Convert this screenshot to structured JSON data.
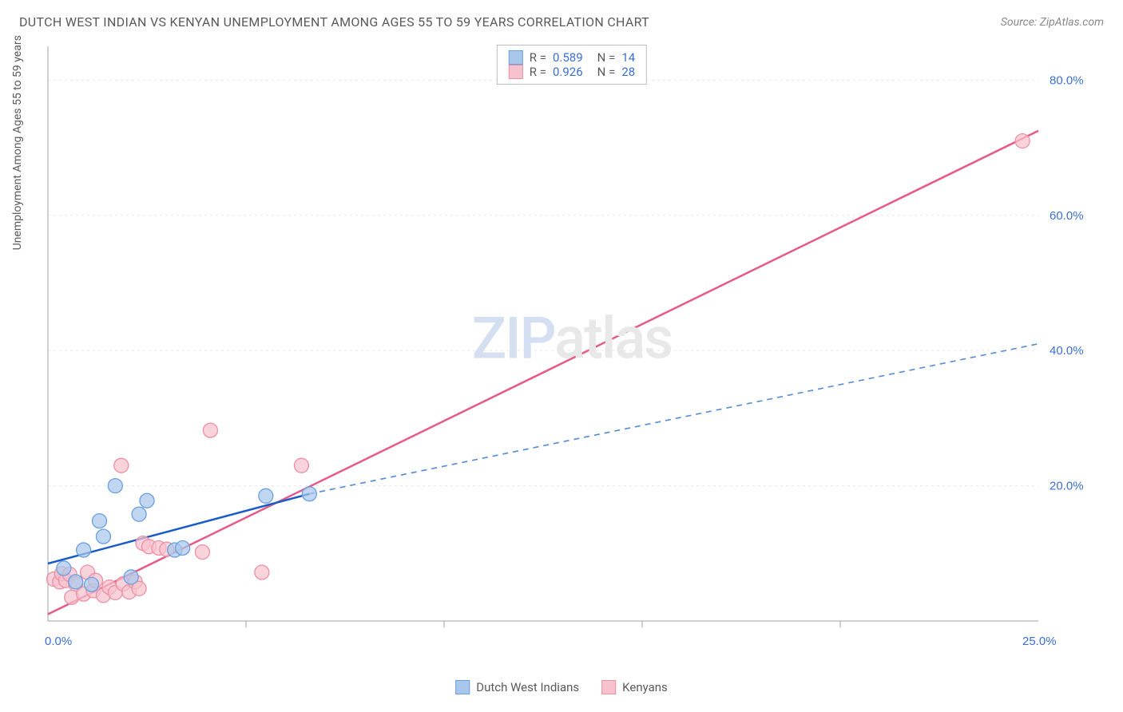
{
  "header": {
    "title": "DUTCH WEST INDIAN VS KENYAN UNEMPLOYMENT AMONG AGES 55 TO 59 YEARS CORRELATION CHART",
    "source": "Source: ZipAtlas.com"
  },
  "chart": {
    "type": "scatter",
    "ylabel": "Unemployment Among Ages 55 to 59 years",
    "xlim": [
      0,
      25
    ],
    "ylim": [
      0,
      85
    ],
    "xticks": [
      0.0,
      25.0
    ],
    "xtick_labels": [
      "0.0%",
      "25.0%"
    ],
    "xticks_minor": [
      5,
      10,
      15,
      20
    ],
    "yticks": [
      20.0,
      40.0,
      60.0,
      80.0
    ],
    "ytick_labels": [
      "20.0%",
      "40.0%",
      "60.0%",
      "80.0%"
    ],
    "grid_color": "#e8e8e8",
    "axis_color": "#a0a0a0",
    "tick_label_color": "#3b6fd6",
    "background_color": "#ffffff",
    "tick_fontsize": 15,
    "series": [
      {
        "name": "Dutch West Indians",
        "fill": "#a9c7ec",
        "stroke": "#6b9fe0",
        "line_color": "#1a5cc7",
        "dash_color": "#5a8fd8",
        "marker_radius": 9,
        "marker_opacity": 0.72,
        "R": "0.589",
        "N": "14",
        "points": [
          [
            0.4,
            7.8
          ],
          [
            0.7,
            5.8
          ],
          [
            0.9,
            10.5
          ],
          [
            1.1,
            5.4
          ],
          [
            1.3,
            14.8
          ],
          [
            1.4,
            12.5
          ],
          [
            1.7,
            20.0
          ],
          [
            2.1,
            6.5
          ],
          [
            2.3,
            15.8
          ],
          [
            2.5,
            17.8
          ],
          [
            3.2,
            10.5
          ],
          [
            3.4,
            10.8
          ],
          [
            5.5,
            18.5
          ],
          [
            6.6,
            18.8
          ]
        ],
        "trend": {
          "x1": 0,
          "y1": 8.5,
          "x2": 6.6,
          "y2": 18.8
        },
        "trend_dash": {
          "x1": 6.6,
          "y1": 18.8,
          "x2": 25,
          "y2": 41.0
        }
      },
      {
        "name": "Kenyans",
        "fill": "#f6c2ce",
        "stroke": "#ec8fa3",
        "line_color": "#e55a87",
        "marker_radius": 9,
        "marker_opacity": 0.72,
        "R": "0.926",
        "N": "28",
        "points": [
          [
            0.15,
            6.2
          ],
          [
            0.3,
            5.8
          ],
          [
            0.35,
            7.0
          ],
          [
            0.45,
            6.0
          ],
          [
            0.55,
            6.9
          ],
          [
            0.6,
            3.5
          ],
          [
            0.7,
            5.5
          ],
          [
            0.9,
            4.0
          ],
          [
            1.0,
            7.2
          ],
          [
            1.15,
            4.5
          ],
          [
            1.2,
            6.0
          ],
          [
            1.4,
            3.8
          ],
          [
            1.55,
            5.0
          ],
          [
            1.7,
            4.2
          ],
          [
            1.85,
            23.0
          ],
          [
            1.9,
            5.5
          ],
          [
            2.05,
            4.3
          ],
          [
            2.2,
            5.8
          ],
          [
            2.3,
            4.8
          ],
          [
            2.4,
            11.5
          ],
          [
            2.55,
            11.0
          ],
          [
            2.8,
            10.8
          ],
          [
            3.0,
            10.6
          ],
          [
            3.9,
            10.2
          ],
          [
            4.1,
            28.2
          ],
          [
            5.4,
            7.2
          ],
          [
            6.4,
            23.0
          ],
          [
            24.6,
            71.0
          ]
        ],
        "trend": {
          "x1": 0,
          "y1": 1.0,
          "x2": 25,
          "y2": 72.5
        }
      }
    ],
    "watermark": {
      "zip": "ZIP",
      "atlas": "atlas"
    },
    "legend_labels": [
      "Dutch West Indians",
      "Kenyans"
    ],
    "stat_labels": {
      "R": "R =",
      "N": "N ="
    }
  }
}
